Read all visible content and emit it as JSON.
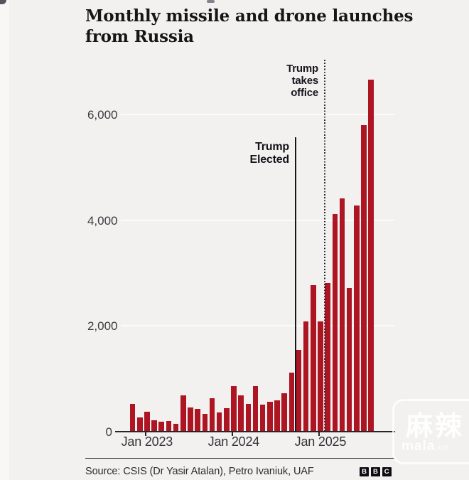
{
  "title": {
    "line1": "Monthly missile and drone launches",
    "line2": "from Russia"
  },
  "chart_data": {
    "type": "bar",
    "title": "Monthly missile and drone launches from Russia",
    "x": [
      "Nov 2022",
      "Dec 2022",
      "Jan 2023",
      "Feb 2023",
      "Mar 2023",
      "Apr 2023",
      "May 2023",
      "Jun 2023",
      "Jul 2023",
      "Aug 2023",
      "Sep 2023",
      "Oct 2023",
      "Nov 2023",
      "Dec 2023",
      "Jan 2024",
      "Feb 2024",
      "Mar 2024",
      "Apr 2024",
      "May 2024",
      "Jun 2024",
      "Jul 2024",
      "Aug 2024",
      "Sep 2024",
      "Oct 2024",
      "Nov 2024",
      "Dec 2024",
      "Jan 2025",
      "Feb 2025",
      "Mar 2025",
      "Apr 2025",
      "May 2025",
      "Jun 2025",
      "Jul 2025",
      "Aug 2025"
    ],
    "values": [
      520,
      265,
      375,
      215,
      180,
      195,
      135,
      675,
      450,
      425,
      330,
      625,
      360,
      440,
      850,
      680,
      525,
      860,
      500,
      560,
      590,
      725,
      1105,
      1545,
      2085,
      2770,
      2085,
      2805,
      4120,
      4410,
      2715,
      4270,
      5800,
      6665
    ],
    "ylim": [
      0,
      7000
    ],
    "yticks": [
      0,
      2000,
      4000,
      6000
    ],
    "ytick_labels": [
      "0",
      "2,000",
      "4,000",
      "6,000"
    ],
    "xticks": [
      "Jan 2023",
      "Jan 2024",
      "Jan 2025"
    ],
    "grid": "faint horizontal gridlines at y ticks",
    "legend": "none",
    "bar_color": "#ae1523",
    "annotations": [
      {
        "label": "Trump Elected",
        "line_style": "solid",
        "after_month": "Sep 2024"
      },
      {
        "label": "Trump takes office",
        "line_style": "dotted",
        "after_month": "Jan 2025"
      }
    ]
  },
  "annotations": {
    "elected": {
      "line1": "Trump",
      "line2": "Elected"
    },
    "office": {
      "line1": "Trump",
      "line2": "takes",
      "line3": "office"
    }
  },
  "footer": {
    "source": "Source: CSIS (Dr Yasir Atalan), Petro Ivaniuk, UAF",
    "logo_letters": [
      "B",
      "B",
      "C"
    ]
  },
  "watermark": {
    "cjk": "麻辣",
    "latin": "mala",
    "tld": ".cn"
  },
  "colors": {
    "background": "#f2f1ef",
    "bar": "#ae1523",
    "axis": "#26262b",
    "text_dark": "#161616",
    "text_grey": "#3c3c42"
  }
}
